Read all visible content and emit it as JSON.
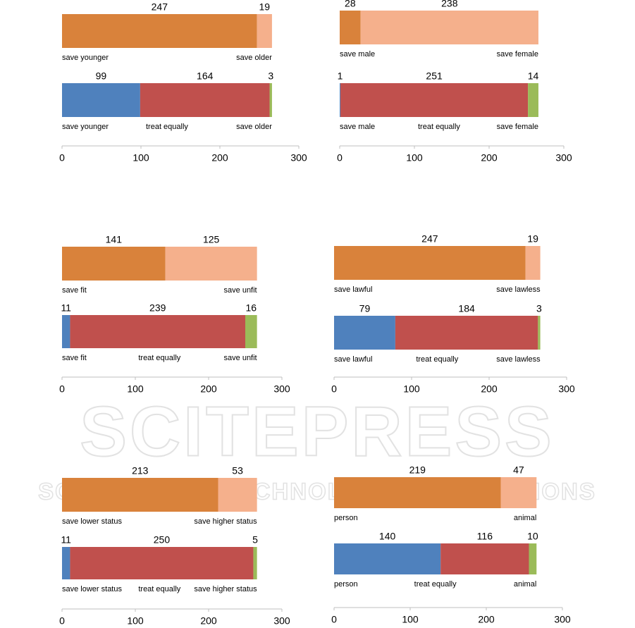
{
  "watermark": "SCITEPRESS",
  "watermark_subtitle": "SCIENCE AND TECHNOLOGY PUBLICATIONS",
  "chart_data": [
    {
      "type": "stacked_bar",
      "xlim": [
        0,
        300
      ],
      "xticks": [
        0,
        100,
        200,
        300
      ],
      "bars": [
        {
          "values": [
            247,
            19
          ],
          "labels": [
            "save younger",
            "save older"
          ],
          "colors": [
            "#d9823b",
            "#f5b08c"
          ]
        },
        {
          "values": [
            99,
            164,
            3
          ],
          "labels": [
            "save younger",
            "treat equally",
            "save older"
          ],
          "colors": [
            "#4f81bd",
            "#c0504d",
            "#9bbb59"
          ]
        }
      ]
    },
    {
      "type": "stacked_bar",
      "xlim": [
        0,
        300
      ],
      "xticks": [
        0,
        100,
        200,
        300
      ],
      "bars": [
        {
          "values": [
            28,
            238
          ],
          "labels": [
            "save male",
            "save female"
          ],
          "colors": [
            "#d9823b",
            "#f5b08c"
          ]
        },
        {
          "values": [
            1,
            251,
            14
          ],
          "labels": [
            "save male",
            "treat equally",
            "save female"
          ],
          "colors": [
            "#4f81bd",
            "#c0504d",
            "#9bbb59"
          ]
        }
      ]
    },
    {
      "type": "stacked_bar",
      "xlim": [
        0,
        300
      ],
      "xticks": [
        0,
        100,
        200,
        300
      ],
      "bars": [
        {
          "values": [
            141,
            125
          ],
          "labels": [
            "save fit",
            "save unfit"
          ],
          "colors": [
            "#d9823b",
            "#f5b08c"
          ]
        },
        {
          "values": [
            11,
            239,
            16
          ],
          "labels": [
            "save fit",
            "treat equally",
            "save unfit"
          ],
          "colors": [
            "#4f81bd",
            "#c0504d",
            "#9bbb59"
          ]
        }
      ]
    },
    {
      "type": "stacked_bar",
      "xlim": [
        0,
        300
      ],
      "xticks": [
        0,
        100,
        200,
        300
      ],
      "bars": [
        {
          "values": [
            247,
            19
          ],
          "labels": [
            "save lawful",
            "save lawless"
          ],
          "colors": [
            "#d9823b",
            "#f5b08c"
          ]
        },
        {
          "values": [
            79,
            184,
            3
          ],
          "labels": [
            "save lawful",
            "treat equally",
            "save lawless"
          ],
          "colors": [
            "#4f81bd",
            "#c0504d",
            "#9bbb59"
          ]
        }
      ]
    },
    {
      "type": "stacked_bar",
      "xlim": [
        0,
        300
      ],
      "xticks": [
        0,
        100,
        200,
        300
      ],
      "bars": [
        {
          "values": [
            213,
            53
          ],
          "labels": [
            "save lower status",
            "save higher status"
          ],
          "colors": [
            "#d9823b",
            "#f5b08c"
          ]
        },
        {
          "values": [
            11,
            250,
            5
          ],
          "labels": [
            "save lower status",
            "treat equally",
            "save higher status"
          ],
          "colors": [
            "#4f81bd",
            "#c0504d",
            "#9bbb59"
          ]
        }
      ]
    },
    {
      "type": "stacked_bar",
      "xlim": [
        0,
        300
      ],
      "xticks": [
        0,
        100,
        200,
        300
      ],
      "bars": [
        {
          "values": [
            219,
            47
          ],
          "labels": [
            "person",
            "animal"
          ],
          "colors": [
            "#d9823b",
            "#f5b08c"
          ]
        },
        {
          "values": [
            140,
            116,
            10
          ],
          "labels": [
            "person",
            "treat equally",
            "animal"
          ],
          "colors": [
            "#4f81bd",
            "#c0504d",
            "#9bbb59"
          ]
        }
      ]
    }
  ]
}
